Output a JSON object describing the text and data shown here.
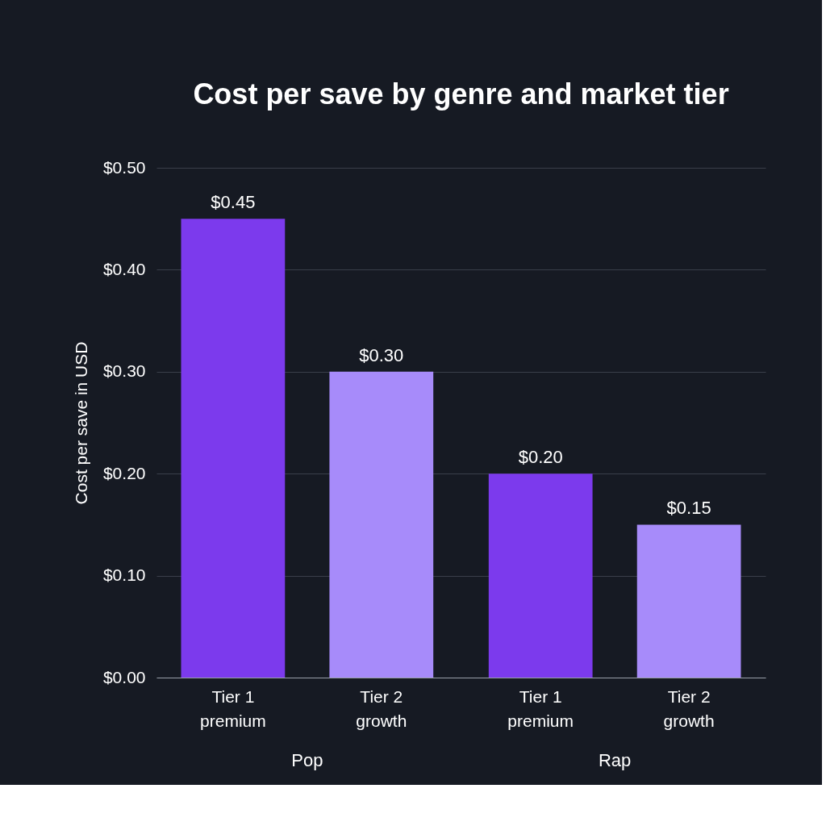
{
  "chart_data": {
    "type": "bar",
    "title": "Cost per save by genre and market tier",
    "ylabel": "Cost per save in USD",
    "categories": [
      "Pop",
      "Rap"
    ],
    "series": [
      {
        "name": "Tier 1\npremium",
        "color": "#7c3aed",
        "values": [
          0.45,
          0.2
        ],
        "value_labels": [
          "$0.45",
          "$0.20"
        ]
      },
      {
        "name": "Tier 2\ngrowth",
        "color": "#a78bfa",
        "values": [
          0.3,
          0.15
        ],
        "value_labels": [
          "$0.30",
          "$0.15"
        ]
      }
    ],
    "ylim": [
      0,
      0.5
    ],
    "yticks": [
      {
        "value": 0,
        "label": "$0.00"
      },
      {
        "value": 0.1,
        "label": "$0.10"
      },
      {
        "value": 0.2,
        "label": "$0.20"
      },
      {
        "value": 0.3,
        "label": "$0.30"
      },
      {
        "value": 0.4,
        "label": "$0.40"
      },
      {
        "value": 0.5,
        "label": "$0.50"
      }
    ],
    "grid": "y"
  }
}
